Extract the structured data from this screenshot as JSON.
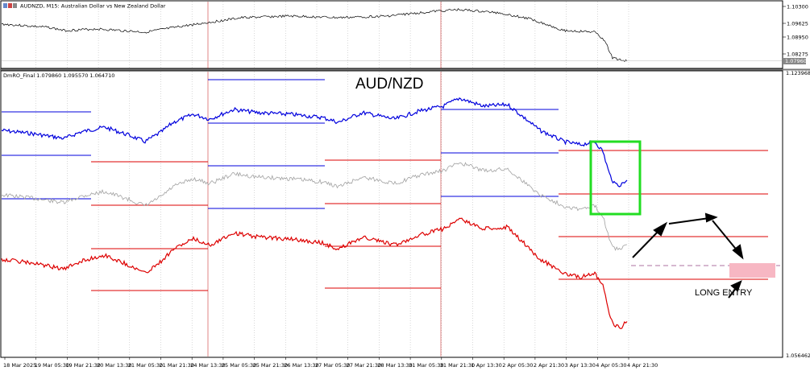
{
  "window": {
    "title": "AUDNZD, M15:  Australian Dollar vs New Zealand Dollar",
    "icon_name": "chart-window-icon"
  },
  "main_pane": {
    "price_ticks": [
      "1.10300",
      "1.09625",
      "1.08950",
      "1.08275"
    ],
    "current_price": "1.07960",
    "line_color": "#000000"
  },
  "indicator_pane": {
    "header": "DmRO_Final 1.079860 1.095570 1.064710",
    "title": "AUD/NZD",
    "top_value": "1.123968",
    "bottom_value": "1.056462",
    "series_colors": {
      "blue": "#0000dd",
      "gray": "#999999",
      "red": "#dd0000"
    }
  },
  "annotations": {
    "long_entry_label": "LONG ENTRY",
    "highlight_box_color": "#22dd22",
    "entry_zone_color": "#f7b7c3"
  },
  "time_axis": [
    "18 Mar 2025",
    "19 Mar 05:30",
    "19 Mar 21:30",
    "20 Mar 13:30",
    "21 Mar 05:30",
    "21 Mar 21:30",
    "24 Mar 13:30",
    "25 Mar 05:30",
    "25 Mar 21:30",
    "26 Mar 13:30",
    "27 Mar 05:30",
    "27 Mar 21:30",
    "28 Mar 13:30",
    "31 Mar 05:30",
    "31 Mar 21:30",
    "1 Apr 13:30",
    "2 Apr 05:30",
    "2 Apr 21:30",
    "3 Apr 13:30",
    "4 Apr 05:30",
    "4 Apr 21:30"
  ]
}
